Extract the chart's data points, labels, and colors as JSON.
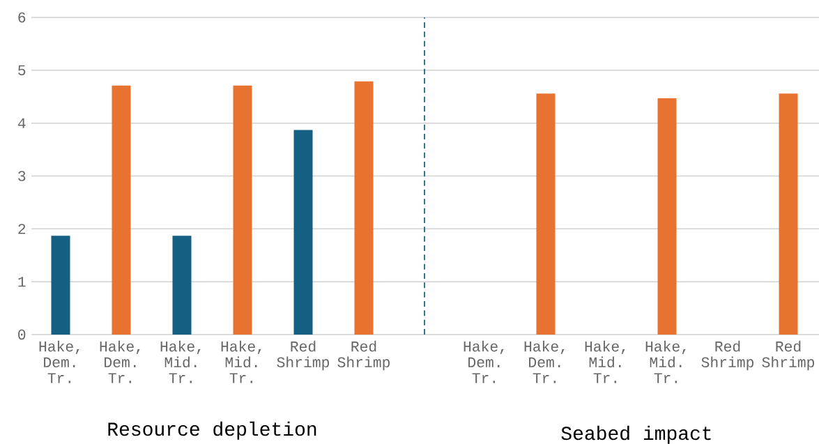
{
  "chart_data": [
    {
      "type": "bar",
      "categories": [
        "Hake, Dem. Tr.",
        "Hake, Dem. Tr.",
        "Hake, Mid. Tr.",
        "Hake, Mid. Tr.",
        "Red Shrimp",
        "Red Shrimp"
      ],
      "values": [
        1.87,
        4.71,
        1.87,
        4.71,
        3.87,
        4.79
      ],
      "colors": [
        "#155f83",
        "#e87230",
        "#155f83",
        "#e87230",
        "#155f83",
        "#e87230"
      ],
      "ylim": [
        0,
        6
      ],
      "yticks": [
        0,
        1,
        2,
        3,
        4,
        5,
        6
      ],
      "grid": "y",
      "annotations": [
        "Resource depletion"
      ]
    },
    {
      "type": "bar",
      "categories": [
        "Hake, Dem. Tr.",
        "Hake, Dem. Tr.",
        "Hake, Mid. Tr.",
        "Hake, Mid. Tr.",
        "Red Shrimp",
        "Red Shrimp"
      ],
      "values": [
        null,
        4.56,
        null,
        4.47,
        null,
        4.56
      ],
      "colors": [
        "#155f83",
        "#e87230",
        "#155f83",
        "#e87230",
        "#155f83",
        "#e87230"
      ],
      "ylim": [
        0,
        6
      ],
      "yticks": [
        0,
        1,
        2,
        3,
        4,
        5,
        6
      ],
      "grid": "y",
      "tick_labels": "x",
      "annotations": [
        "Seabed impact"
      ]
    }
  ]
}
